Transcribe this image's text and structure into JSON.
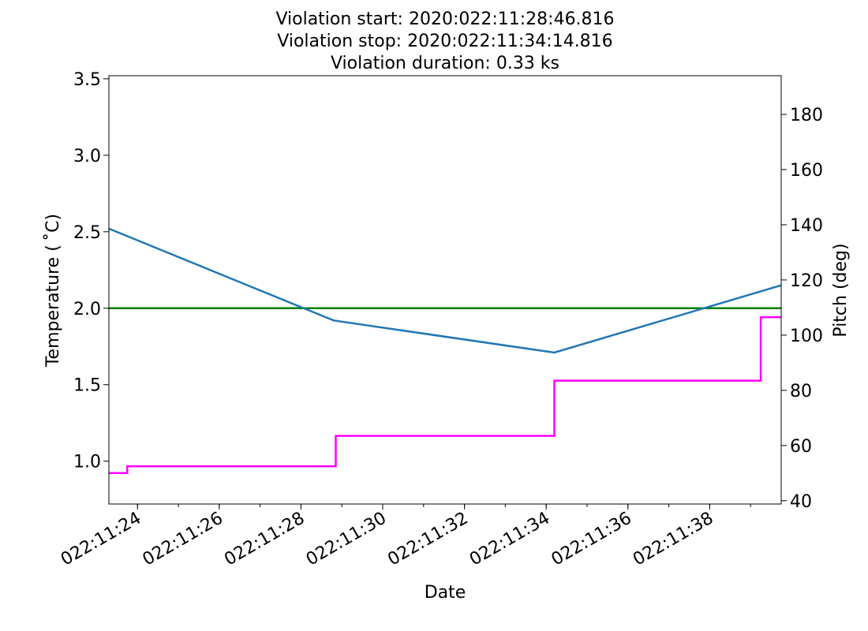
{
  "chart_data": {
    "type": "line",
    "title": [
      "Violation start: 2020:022:11:28:46.816",
      "Violation stop: 2020:022:11:34:14.816",
      "Violation duration: 0.33 ks"
    ],
    "xlabel": "Date",
    "ylabel_left": "Temperature ( ˚C)",
    "ylabel_right": "Pitch (deg)",
    "x_range_minutes": [
      23.3,
      39.75
    ],
    "x_ticks": [
      {
        "minute": 24,
        "label": "022:11:24"
      },
      {
        "minute": 26,
        "label": "022:11:26"
      },
      {
        "minute": 28,
        "label": "022:11:28"
      },
      {
        "minute": 30,
        "label": "022:11:30"
      },
      {
        "minute": 32,
        "label": "022:11:32"
      },
      {
        "minute": 34,
        "label": "022:11:34"
      },
      {
        "minute": 36,
        "label": "022:11:36"
      },
      {
        "minute": 38,
        "label": "022:11:38"
      }
    ],
    "ylim_left": [
      0.72,
      3.52
    ],
    "yticks_left": [
      {
        "value": 1.0,
        "label": "1.0"
      },
      {
        "value": 1.5,
        "label": "1.5"
      },
      {
        "value": 2.0,
        "label": "2.0"
      },
      {
        "value": 2.5,
        "label": "2.5"
      },
      {
        "value": 3.0,
        "label": "3.0"
      },
      {
        "value": 3.5,
        "label": "3.5"
      }
    ],
    "ylim_right": [
      38.8,
      194
    ],
    "yticks_right": [
      {
        "value": 40,
        "label": "40"
      },
      {
        "value": 60,
        "label": "60"
      },
      {
        "value": 80,
        "label": "80"
      },
      {
        "value": 100,
        "label": "100"
      },
      {
        "value": 120,
        "label": "120"
      },
      {
        "value": 140,
        "label": "140"
      },
      {
        "value": 160,
        "label": "160"
      },
      {
        "value": 180,
        "label": "180"
      }
    ],
    "series": [
      {
        "id": "temperature",
        "axis": "left",
        "color": "#1f77b4",
        "kind": "line",
        "x_minutes": [
          23.3,
          28.8,
          34.2,
          39.75
        ],
        "y": [
          2.52,
          1.92,
          1.71,
          2.15
        ]
      },
      {
        "id": "pitch",
        "axis": "right",
        "color": "#ff00ff",
        "kind": "step",
        "x_minutes": [
          23.3,
          23.75,
          28.85,
          34.2,
          39.25,
          39.75
        ],
        "y": [
          50,
          52.5,
          63.5,
          83.5,
          106.5,
          106.5
        ]
      }
    ],
    "hlines": [
      {
        "id": "limit",
        "axis": "left",
        "value": 2.0,
        "color": "#008000"
      }
    ],
    "grid": false,
    "legend": "none"
  }
}
